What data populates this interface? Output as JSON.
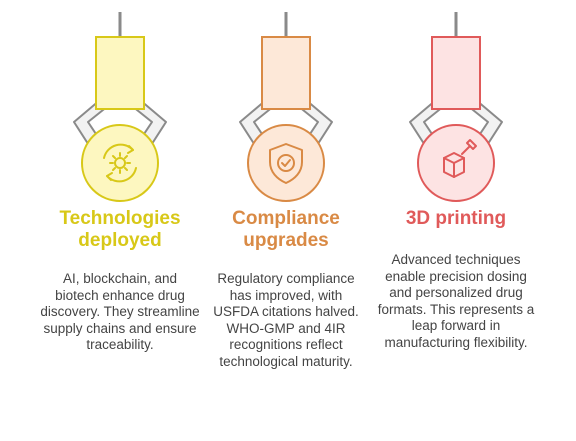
{
  "colors": {
    "gray_line": "#8a8a8a",
    "gray_fill": "#f2f2f2",
    "yellow": "#d8c818",
    "yellow_fill": "#fdf7c0",
    "orange": "#d98a45",
    "orange_fill": "#fde8d8",
    "red": "#e05a5a",
    "red_fill": "#fde3e3"
  },
  "items": [
    {
      "title": "Technologies deployed",
      "title_line1": "Technologies",
      "title_line2": "deployed",
      "icon": "gear-cycle-icon",
      "description": "AI, blockchain, and biotech enhance drug discovery. They streamline supply chains and ensure traceability."
    },
    {
      "title": "Compliance upgrades",
      "title_line1": "Compliance",
      "title_line2": "upgrades",
      "icon": "shield-check-icon",
      "description": "Regulatory compliance has improved, with USFDA citations halved. WHO-GMP and 4IR recognitions reflect technological maturity."
    },
    {
      "title": "3D printing",
      "title_line1": "3D printing",
      "title_line2": "",
      "icon": "3d-print-icon",
      "description": "Advanced techniques enable precision dosing and personalized drug formats. This represents a leap forward in manufacturing flexibility."
    }
  ]
}
